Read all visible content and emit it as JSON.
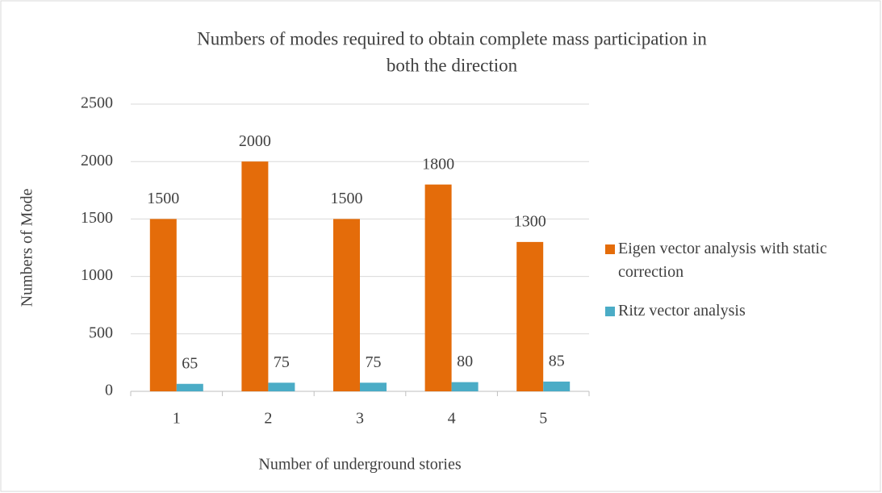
{
  "chart_data": {
    "type": "bar",
    "title": [
      "Numbers of modes required to obtain complete mass participation in",
      "both the direction"
    ],
    "x_label": "Number of underground stories",
    "y_label": "Numbers of Mode",
    "categories": [
      "1",
      "2",
      "3",
      "4",
      "5"
    ],
    "series": [
      {
        "name": "Eigen vector analysis with static correction",
        "color": "#e46c0a",
        "values": [
          1500,
          2000,
          1500,
          1800,
          1300
        ]
      },
      {
        "name": "Ritz vector analysis",
        "color": "#4bacc6",
        "values": [
          65,
          75,
          75,
          80,
          85
        ]
      }
    ],
    "ylim": [
      0,
      2500
    ],
    "yticks": [
      0,
      500,
      1000,
      1500,
      2000,
      2500
    ],
    "grid": true,
    "legend": "right"
  }
}
